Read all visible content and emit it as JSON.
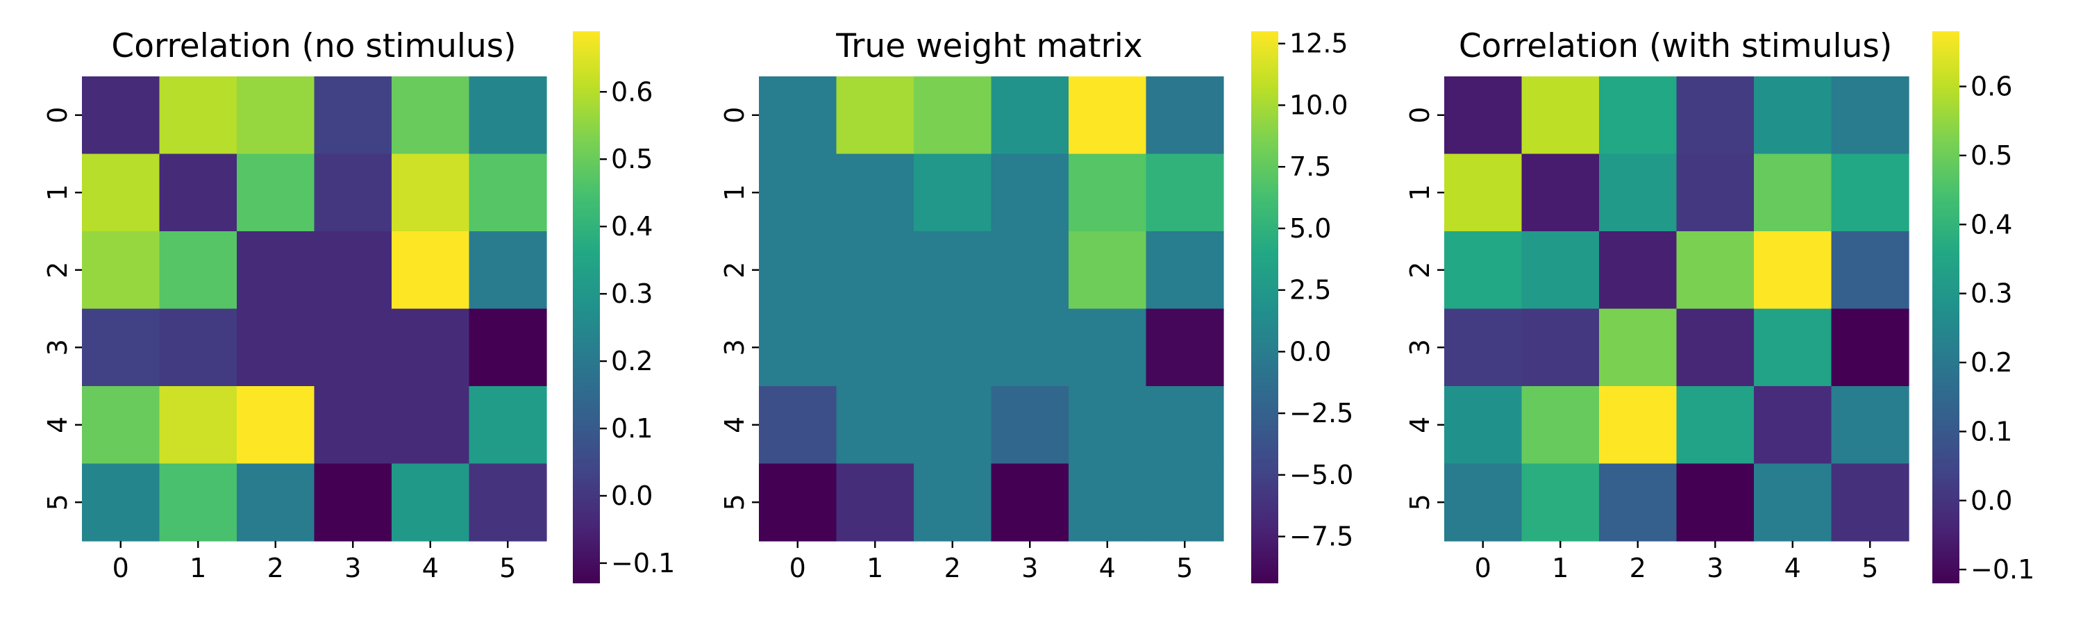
{
  "chart_data": [
    {
      "type": "heatmap",
      "title": "Correlation (no stimulus)",
      "xlabel": "",
      "ylabel": "",
      "x_ticks": [
        "0",
        "1",
        "2",
        "3",
        "4",
        "5"
      ],
      "y_ticks": [
        "0",
        "1",
        "2",
        "3",
        "4",
        "5"
      ],
      "colormap": "viridis",
      "vmin": -0.13,
      "vmax": 0.69,
      "colorbar_ticks": [
        -0.1,
        0.0,
        0.1,
        0.2,
        0.3,
        0.4,
        0.5,
        0.6
      ],
      "colorbar_tick_labels": [
        "−0.1",
        "0.0",
        "0.1",
        "0.2",
        "0.3",
        "0.4",
        "0.5",
        "0.6"
      ],
      "values": [
        [
          -0.03,
          0.6,
          0.56,
          0.03,
          0.5,
          0.24
        ],
        [
          0.6,
          -0.03,
          0.47,
          0.0,
          0.63,
          0.47
        ],
        [
          0.56,
          0.47,
          -0.03,
          -0.03,
          0.69,
          0.21
        ],
        [
          0.03,
          0.01,
          -0.03,
          -0.03,
          -0.03,
          -0.13
        ],
        [
          0.5,
          0.63,
          0.69,
          -0.03,
          -0.03,
          0.32
        ],
        [
          0.24,
          0.45,
          0.21,
          -0.13,
          0.31,
          -0.01
        ]
      ]
    },
    {
      "type": "heatmap",
      "title": "True weight matrix",
      "xlabel": "",
      "ylabel": "",
      "x_ticks": [
        "0",
        "1",
        "2",
        "3",
        "4",
        "5"
      ],
      "y_ticks": [
        "0",
        "1",
        "2",
        "3",
        "4",
        "5"
      ],
      "colormap": "viridis",
      "vmin": -9.4,
      "vmax": 13.0,
      "colorbar_ticks": [
        -7.5,
        -5.0,
        -2.5,
        0.0,
        2.5,
        5.0,
        7.5,
        10.0,
        12.5
      ],
      "colorbar_tick_labels": [
        "−7.5",
        "−5.0",
        "−2.5",
        "0.0",
        "2.5",
        "5.0",
        "7.5",
        "10.0",
        "12.5"
      ],
      "values": [
        [
          0.0,
          10.0,
          8.5,
          2.0,
          13.0,
          -0.5
        ],
        [
          0.0,
          0.0,
          2.5,
          0.0,
          7.0,
          5.0
        ],
        [
          0.0,
          0.0,
          0.0,
          0.0,
          8.0,
          0.0
        ],
        [
          0.0,
          0.0,
          0.0,
          0.0,
          0.0,
          -9.0
        ],
        [
          -4.0,
          0.0,
          0.0,
          -2.0,
          0.0,
          0.0
        ],
        [
          -9.4,
          -6.5,
          0.0,
          -9.4,
          0.0,
          0.0
        ]
      ]
    },
    {
      "type": "heatmap",
      "title": "Correlation (with stimulus)",
      "xlabel": "",
      "ylabel": "",
      "x_ticks": [
        "0",
        "1",
        "2",
        "3",
        "4",
        "5"
      ],
      "y_ticks": [
        "0",
        "1",
        "2",
        "3",
        "4",
        "5"
      ],
      "colormap": "viridis",
      "vmin": -0.12,
      "vmax": 0.68,
      "colorbar_ticks": [
        -0.1,
        0.0,
        0.1,
        0.2,
        0.3,
        0.4,
        0.5,
        0.6
      ],
      "colorbar_tick_labels": [
        "−0.1",
        "0.0",
        "0.1",
        "0.2",
        "0.3",
        "0.4",
        "0.5",
        "0.6"
      ],
      "values": [
        [
          -0.06,
          0.6,
          0.36,
          0.02,
          0.28,
          0.21
        ],
        [
          0.6,
          -0.06,
          0.31,
          0.01,
          0.49,
          0.36
        ],
        [
          0.36,
          0.31,
          -0.05,
          0.52,
          0.68,
          0.12
        ],
        [
          0.02,
          0.01,
          0.52,
          -0.03,
          0.34,
          -0.12
        ],
        [
          0.28,
          0.49,
          0.68,
          0.34,
          -0.02,
          0.22
        ],
        [
          0.21,
          0.38,
          0.12,
          -0.12,
          0.22,
          -0.01
        ]
      ]
    }
  ]
}
